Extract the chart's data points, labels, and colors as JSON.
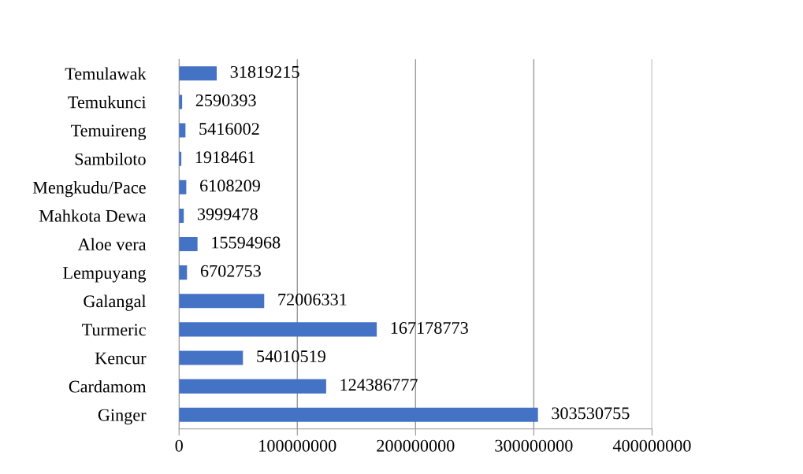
{
  "chart_data": {
    "type": "bar",
    "orientation": "horizontal",
    "categories": [
      "Temulawak",
      "Temukunci",
      "Temuireng",
      "Sambiloto",
      "Mengkudu/Pace",
      "Mahkota Dewa",
      "Aloe vera",
      "Lempuyang",
      "Galangal",
      "Turmeric",
      "Kencur",
      "Cardamom",
      "Ginger"
    ],
    "values": [
      31819215,
      2590393,
      5416002,
      1918461,
      6108209,
      3999478,
      15594968,
      6702753,
      72006331,
      167178773,
      54010519,
      124386777,
      303530755
    ],
    "color": "#4472c4",
    "data_labels": true,
    "grid": "x",
    "legend": false,
    "xlim": [
      0,
      400000000
    ],
    "xticks": [
      0,
      100000000,
      200000000,
      300000000,
      400000000
    ]
  }
}
